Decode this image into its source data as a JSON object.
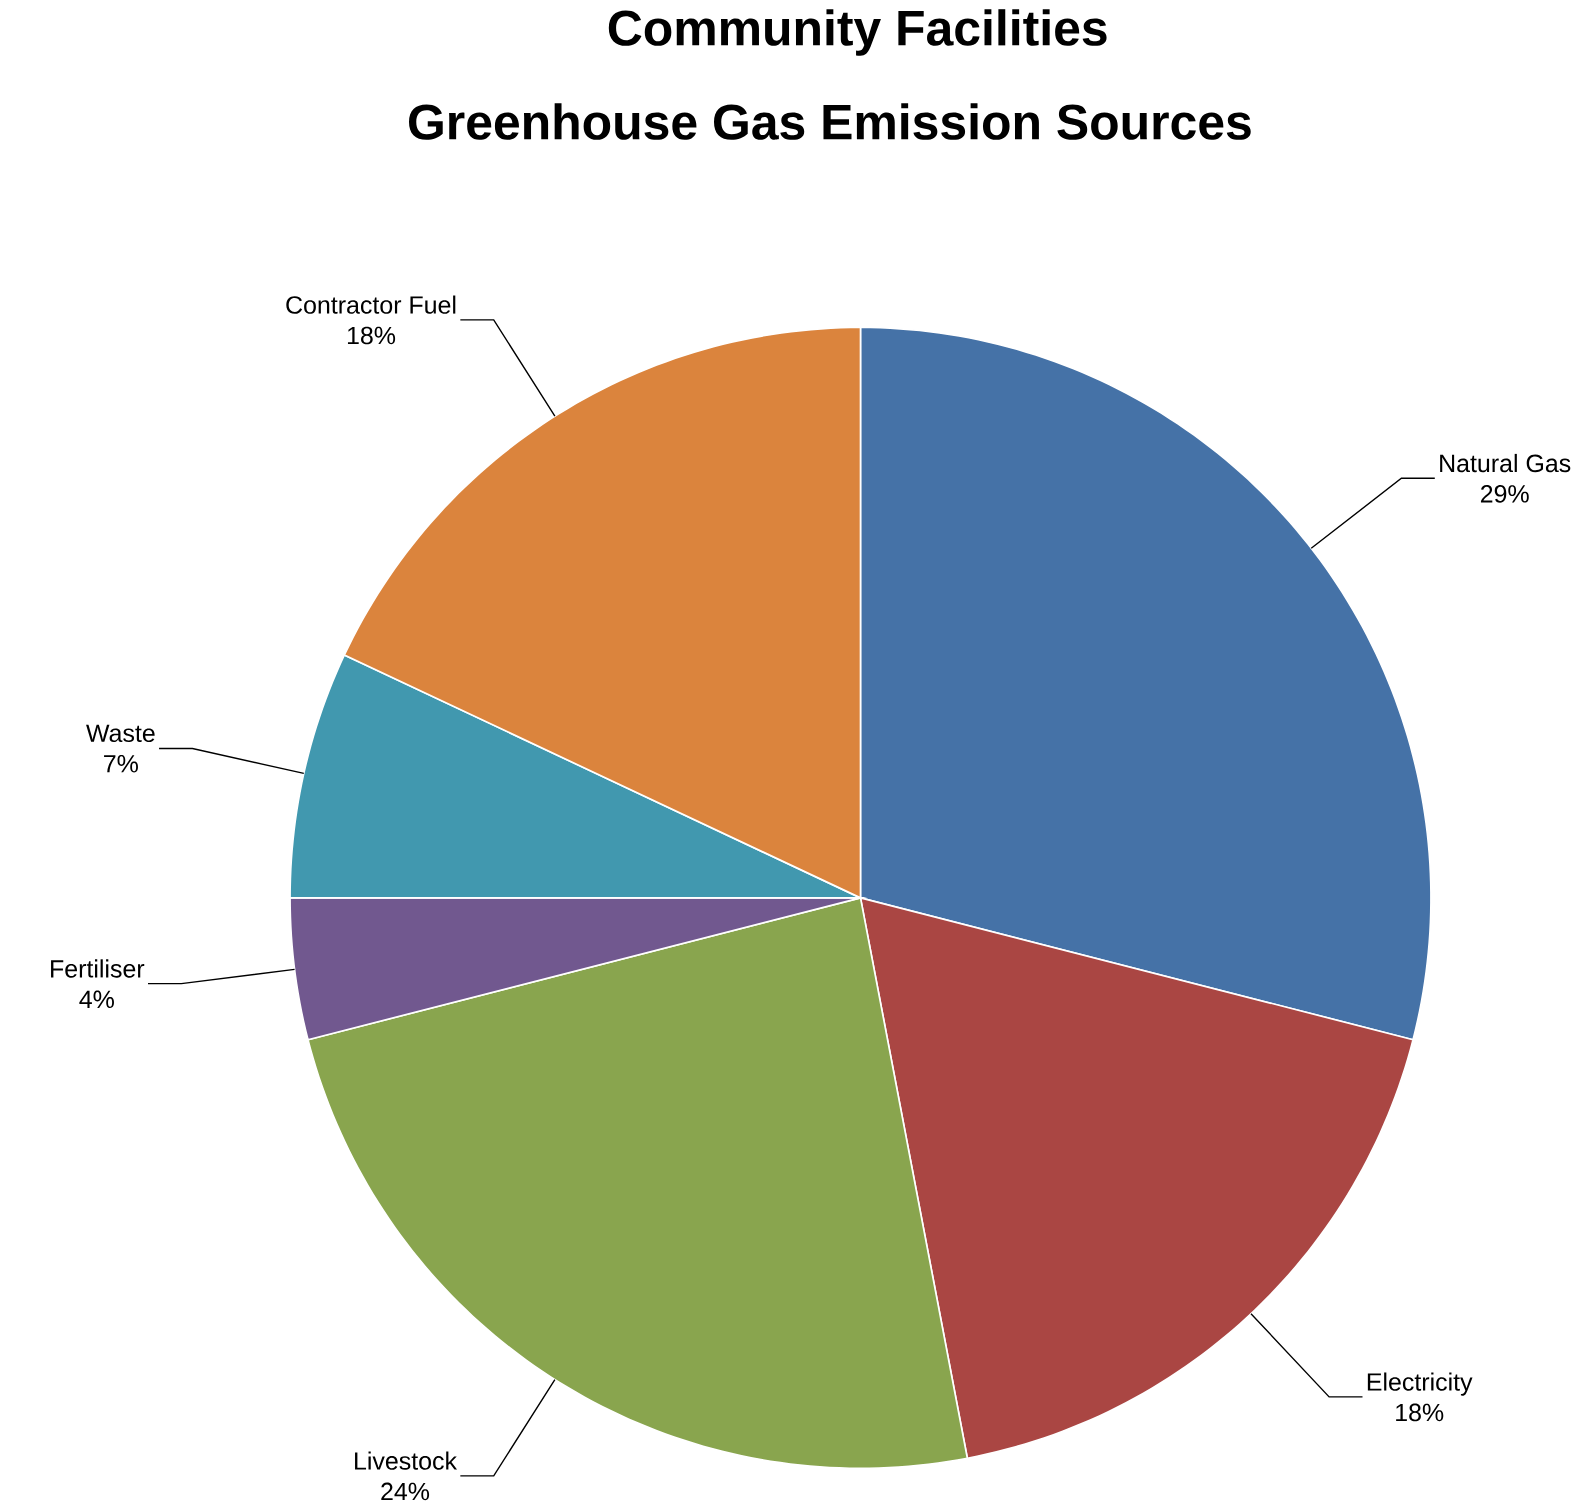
{
  "chart_data": {
    "type": "pie",
    "title": "Community Facilities",
    "subtitle": "Greenhouse Gas Emission Sources",
    "categories": [
      "Natural Gas",
      "Electricity",
      "Livestock",
      "Fertiliser",
      "Waste",
      "Contractor Fuel"
    ],
    "values": [
      29,
      18,
      24,
      4,
      7,
      18
    ],
    "value_labels": [
      "29%",
      "18%",
      "24%",
      "4%",
      "7%",
      "18%"
    ],
    "colors": [
      "#4572a7",
      "#aa4643",
      "#89a54e",
      "#71588f",
      "#4198af",
      "#db843d"
    ]
  }
}
